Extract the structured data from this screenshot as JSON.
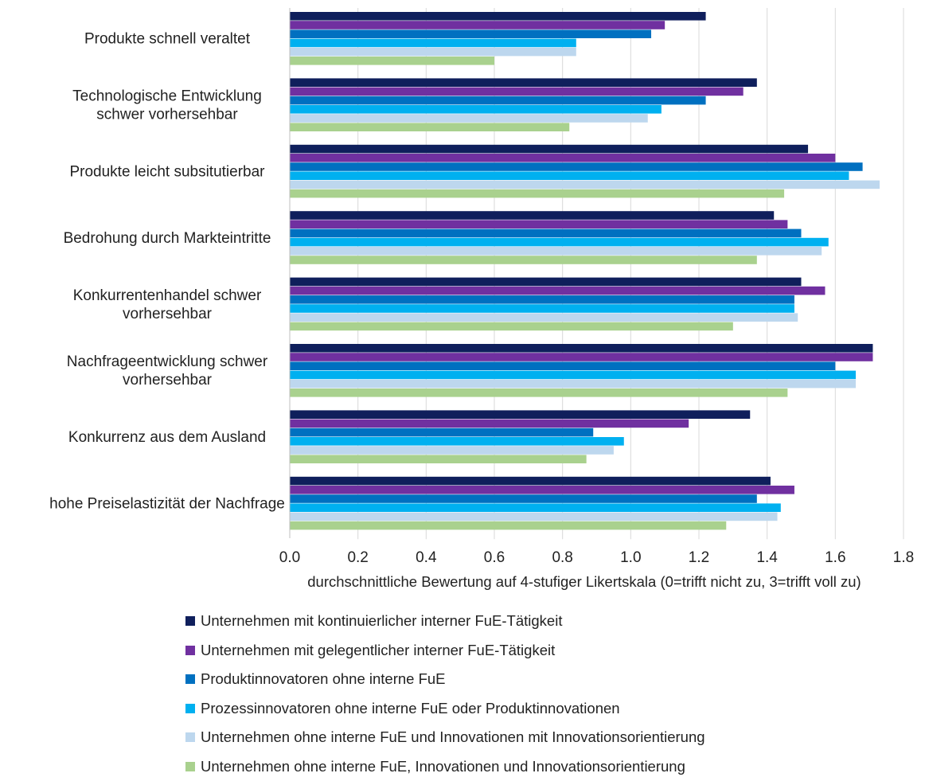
{
  "chart_data": {
    "type": "bar",
    "orientation": "horizontal",
    "categories": [
      [
        "Produkte schnell veraltet"
      ],
      [
        "Technologische Entwicklung",
        "schwer vorhersehbar"
      ],
      [
        "Produkte leicht subsitutierbar"
      ],
      [
        "Bedrohung durch Markteintritte"
      ],
      [
        "Konkurrentenhandel schwer",
        "vorhersehbar"
      ],
      [
        "Nachfrageentwicklung schwer",
        "vorhersehbar"
      ],
      [
        "Konkurrenz aus dem Ausland"
      ],
      [
        "hohe Preiselastizität der Nachfrage"
      ]
    ],
    "series": [
      {
        "name": "Unternehmen mit kontinuierlicher interner FuE-Tätigkeit",
        "color": "#0f1f5c",
        "values": [
          1.22,
          1.37,
          1.52,
          1.42,
          1.5,
          1.71,
          1.35,
          1.41
        ]
      },
      {
        "name": "Unternehmen mit gelegentlicher interner FuE-Tätigkeit",
        "color": "#7030a0",
        "values": [
          1.1,
          1.33,
          1.6,
          1.46,
          1.57,
          1.71,
          1.17,
          1.48
        ]
      },
      {
        "name": "Produktinnovatoren ohne interne FuE",
        "color": "#0070c0",
        "values": [
          1.06,
          1.22,
          1.68,
          1.5,
          1.48,
          1.6,
          0.89,
          1.37
        ]
      },
      {
        "name": "Prozessinnovatoren ohne interne FuE oder Produktinnovationen",
        "color": "#00b0f0",
        "values": [
          0.84,
          1.09,
          1.64,
          1.58,
          1.48,
          1.66,
          0.98,
          1.44
        ]
      },
      {
        "name": "Unternehmen ohne interne FuE und Innovationen mit Innovationsorientierung",
        "color": "#bdd7ee",
        "values": [
          0.84,
          1.05,
          1.73,
          1.56,
          1.49,
          1.66,
          0.95,
          1.43
        ]
      },
      {
        "name": "Unternehmen ohne interne FuE, Innovationen und Innovationsorientierung",
        "color": "#a9d18e",
        "values": [
          0.6,
          0.82,
          1.45,
          1.37,
          1.3,
          1.46,
          0.87,
          1.28
        ]
      }
    ],
    "xlim": [
      0,
      1.8
    ],
    "xticks": [
      "0.0",
      "0.2",
      "0.4",
      "0.6",
      "0.8",
      "1.0",
      "1.2",
      "1.4",
      "1.6",
      "1.8"
    ],
    "xlabel": "durchschnittliche Bewertung auf 4-stufiger Likertskala (0=trifft nicht zu, 3=trifft voll zu)",
    "grid": "vertical",
    "legend": "bottom"
  }
}
